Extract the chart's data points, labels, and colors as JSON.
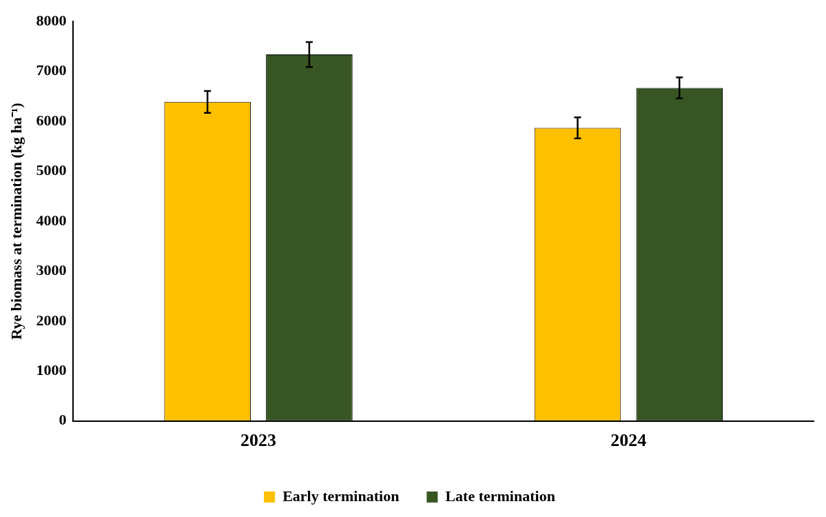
{
  "chart_data": {
    "type": "bar",
    "ylabel": "Rye biomass at termination (kg ha⁻¹)",
    "categories": [
      "2023",
      "2024"
    ],
    "series": [
      {
        "name": "Early termination",
        "color": "#ffc000",
        "values": [
          6390,
          5870
        ],
        "errors": [
          220,
          210
        ]
      },
      {
        "name": "Late termination",
        "color": "#375623",
        "values": [
          7340,
          6670
        ],
        "errors": [
          250,
          210
        ]
      }
    ],
    "ylim": [
      0,
      8000
    ],
    "yticks": [
      0,
      1000,
      2000,
      3000,
      4000,
      5000,
      6000,
      7000,
      8000
    ],
    "grid": false,
    "legend": "bottom"
  }
}
